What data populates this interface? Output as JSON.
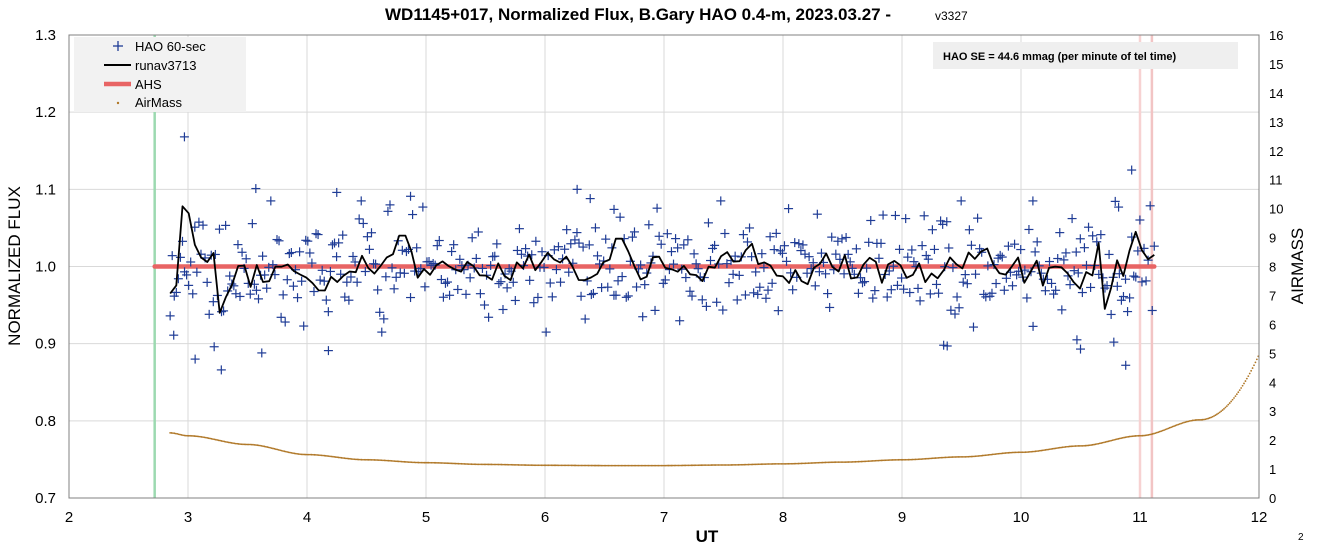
{
  "chart_data": {
    "type": "scatter",
    "title": "WD1145+017, Normalized Flux, B.Gary HAO 0.4-m, 2023.03.27 -",
    "title_version": "v3327",
    "xlabel": "UT",
    "ylabel": "NORMALIZED FLUX",
    "y2label": "AIRMASS",
    "xlim": [
      2,
      12
    ],
    "ylim": [
      0.7,
      1.3
    ],
    "y2lim": [
      0,
      16
    ],
    "x_ticks": [
      "2",
      "3",
      "4",
      "5",
      "6",
      "7",
      "8",
      "9",
      "10",
      "11",
      "12"
    ],
    "y_ticks": [
      "0.7",
      "0.8",
      "0.9",
      "1.0",
      "1.1",
      "1.2",
      "1.3"
    ],
    "y2_ticks": [
      "0",
      "1",
      "2",
      "3",
      "4",
      "5",
      "6",
      "7",
      "8",
      "9",
      "10",
      "11",
      "12",
      "13",
      "14",
      "15",
      "16"
    ],
    "grid": true,
    "legend_position": "top-left",
    "legend": [
      "HAO 60-sec",
      "runav3713",
      "AHS",
      "AirMass"
    ],
    "annotation": "HAO SE =  44.6 mmag (per minute of tel time)",
    "page_number": "2",
    "colors": {
      "hao": "#1f3c96",
      "runav": "#000000",
      "ahs": "#e86464",
      "airmass": "#b07828",
      "green_line": "#9cd9b0",
      "pink_line": "#f2c4c4",
      "grid": "#d9d9d9",
      "legend_bg": "#f2f2f2",
      "note_bg": "#efefef"
    },
    "vertical_markers": [
      {
        "x": 2.72,
        "color": "#9cd9b0"
      },
      {
        "x": 11.0,
        "color": "#f7d2d2"
      },
      {
        "x": 11.1,
        "color": "#f2c4c4"
      }
    ],
    "series": [
      {
        "name": "HAO 60-sec",
        "kind": "scatter",
        "x_range": [
          2.85,
          11.12
        ],
        "count": 480,
        "center": 1.0,
        "scatter_sd": 0.045,
        "outliers": [
          [
            2.97,
            1.168
          ],
          [
            2.88,
            0.911
          ],
          [
            3.22,
            0.896
          ],
          [
            3.28,
            0.866
          ],
          [
            3.06,
            0.88
          ],
          [
            3.57,
            1.101
          ],
          [
            3.62,
            0.888
          ],
          [
            4.25,
            1.096
          ],
          [
            4.18,
            0.891
          ],
          [
            4.87,
            1.091
          ],
          [
            6.27,
            1.1
          ],
          [
            6.38,
            1.088
          ],
          [
            10.93,
            1.125
          ],
          [
            10.88,
            0.872
          ],
          [
            10.47,
            0.905
          ],
          [
            10.5,
            0.893
          ],
          [
            10.78,
            0.902
          ],
          [
            9.35,
            0.898
          ],
          [
            9.38,
            0.897
          ],
          [
            10.1,
            1.085
          ],
          [
            10.82,
            1.077
          ],
          [
            6.58,
            1.074
          ]
        ]
      },
      {
        "name": "runav3713",
        "kind": "line",
        "x_range": [
          2.85,
          11.12
        ],
        "count": 160,
        "center": 1.0,
        "swing_sd": 0.022,
        "features": [
          [
            2.96,
            1.078
          ],
          [
            2.99,
            1.069
          ],
          [
            3.25,
            0.916
          ],
          [
            3.28,
            0.94
          ],
          [
            4.8,
            1.04
          ],
          [
            6.62,
            1.036
          ],
          [
            10.7,
            0.945
          ],
          [
            10.95,
            1.045
          ],
          [
            11.12,
            1.015
          ]
        ]
      },
      {
        "name": "AHS",
        "kind": "line",
        "x": [
          2.72,
          11.12
        ],
        "y": [
          1.0,
          1.0
        ]
      },
      {
        "name": "AirMass",
        "kind": "dotted-curve",
        "axis": "right",
        "points": [
          [
            2.85,
            2.25
          ],
          [
            3.0,
            2.15
          ],
          [
            3.5,
            1.85
          ],
          [
            4.0,
            1.5
          ],
          [
            4.5,
            1.32
          ],
          [
            5.0,
            1.22
          ],
          [
            5.5,
            1.16
          ],
          [
            6.0,
            1.13
          ],
          [
            6.5,
            1.12
          ],
          [
            7.0,
            1.12
          ],
          [
            7.5,
            1.14
          ],
          [
            8.0,
            1.18
          ],
          [
            8.5,
            1.24
          ],
          [
            9.0,
            1.32
          ],
          [
            9.5,
            1.42
          ],
          [
            10.0,
            1.58
          ],
          [
            10.5,
            1.8
          ],
          [
            11.0,
            2.15
          ],
          [
            11.5,
            2.7
          ],
          [
            12.0,
            4.95
          ]
        ]
      }
    ]
  }
}
